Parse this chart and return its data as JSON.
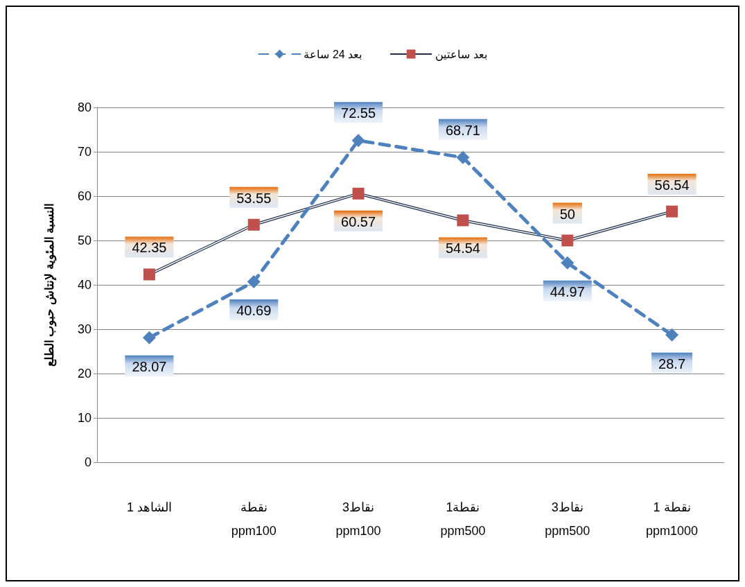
{
  "chart_data": {
    "type": "line",
    "ylabel": "النسبة المئوية لإنتاش حبوب الطلع",
    "categories": [
      "الشاهد 1",
      "نقطة\nppm100",
      "نقاط3\nppm100",
      "نقطة1\nppm500",
      "نقاط3\nppm500",
      "نقطة 1\nppm1000"
    ],
    "series": [
      {
        "name": "بعد ساعتين",
        "color": "#c0504d",
        "marker": "square",
        "line_style": "solid",
        "values": [
          42.35,
          53.55,
          60.57,
          54.54,
          50,
          56.54
        ]
      },
      {
        "name": "بعد 24 ساعة",
        "color": "#4f81bd",
        "marker": "diamond",
        "line_style": "dashed",
        "values": [
          28.07,
          40.69,
          72.55,
          68.71,
          44.97,
          28.7
        ]
      }
    ],
    "ylim": [
      0,
      80
    ],
    "yticks": [
      0,
      10,
      20,
      30,
      40,
      50,
      60,
      70,
      80
    ],
    "grid": "y",
    "legend": "top",
    "data_labels": true
  }
}
